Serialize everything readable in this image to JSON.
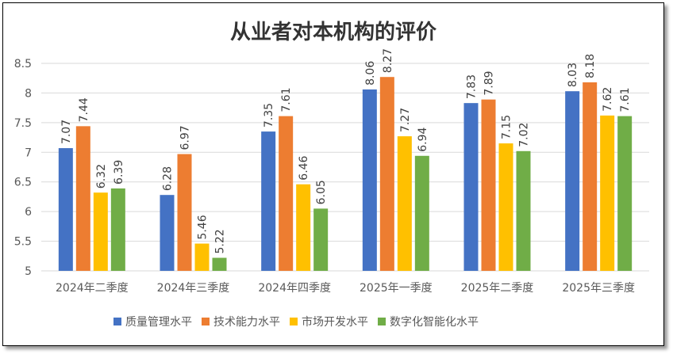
{
  "chart_data": {
    "type": "bar",
    "title": "从业者对本机构的评价",
    "categories": [
      "2024年二季度",
      "2024年三季度",
      "2024年四季度",
      "2025年一季度",
      "2025年二季度",
      "2025年三季度"
    ],
    "series": [
      {
        "name": "质量管理水平",
        "color": "#4472C4",
        "values": [
          7.07,
          6.28,
          7.35,
          8.06,
          7.83,
          8.03
        ]
      },
      {
        "name": "技术能力水平",
        "color": "#ED7D31",
        "values": [
          7.44,
          6.97,
          7.61,
          8.27,
          7.89,
          8.18
        ]
      },
      {
        "name": "市场开发水平",
        "color": "#FFC000",
        "values": [
          6.32,
          5.46,
          6.46,
          7.27,
          7.15,
          7.62
        ]
      },
      {
        "name": "数字化智能化水平",
        "color": "#70AD47",
        "values": [
          6.39,
          5.22,
          6.05,
          6.94,
          7.02,
          7.61
        ]
      }
    ],
    "ylim": [
      5,
      8.5
    ],
    "yticks": [
      "5",
      "5.5",
      "6",
      "6.5",
      "7",
      "7.5",
      "8",
      "8.5"
    ],
    "grid": true,
    "legend": "bottom"
  }
}
